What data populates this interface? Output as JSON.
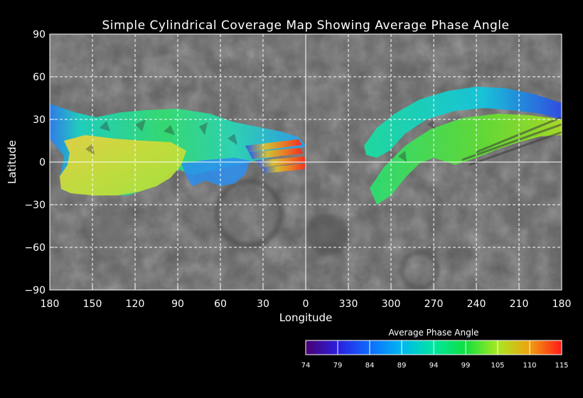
{
  "title": "Simple Cylindrical Coverage Map Showing Average Phase Angle",
  "x_axis": {
    "label": "Longitude",
    "ticks": [
      "180",
      "150",
      "120",
      "90",
      "60",
      "30",
      "0",
      "330",
      "300",
      "270",
      "240",
      "210",
      "180"
    ]
  },
  "y_axis": {
    "label": "Latitude",
    "ticks": [
      "90",
      "60",
      "30",
      "0",
      "−30",
      "−60",
      "−90"
    ]
  },
  "colorbar": {
    "title": "Average Phase Angle",
    "ticks": [
      "74",
      "79",
      "84",
      "89",
      "94",
      "99",
      "105",
      "110",
      "115"
    ],
    "colors": [
      "#4b006e",
      "#2b1ee0",
      "#0d6cff",
      "#00b8f0",
      "#00e6a0",
      "#10e040",
      "#a8e820",
      "#f0a010",
      "#ff1818"
    ]
  },
  "colors": {
    "background": "#000000",
    "map_base": "#5e5e5e",
    "grid": "#ffffff"
  }
}
